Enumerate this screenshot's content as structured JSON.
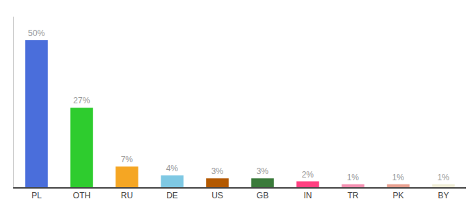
{
  "chart_data": {
    "type": "bar",
    "categories": [
      "PL",
      "OTH",
      "RU",
      "DE",
      "US",
      "GB",
      "IN",
      "TR",
      "PK",
      "BY"
    ],
    "values": [
      50,
      27,
      7,
      4,
      3,
      3,
      2,
      1,
      1,
      1
    ],
    "value_labels": [
      "50%",
      "27%",
      "7%",
      "4%",
      "3%",
      "3%",
      "2%",
      "1%",
      "1%",
      "1%"
    ],
    "colors": [
      "#4a6edb",
      "#2ecc2e",
      "#f5a623",
      "#7ec8e3",
      "#b35900",
      "#3a7a3a",
      "#ff4081",
      "#f48fb1",
      "#e8a090",
      "#f0eed8"
    ],
    "ylim": [
      0,
      58
    ],
    "data_labels": true,
    "tick_labels": "x",
    "grid": false
  }
}
